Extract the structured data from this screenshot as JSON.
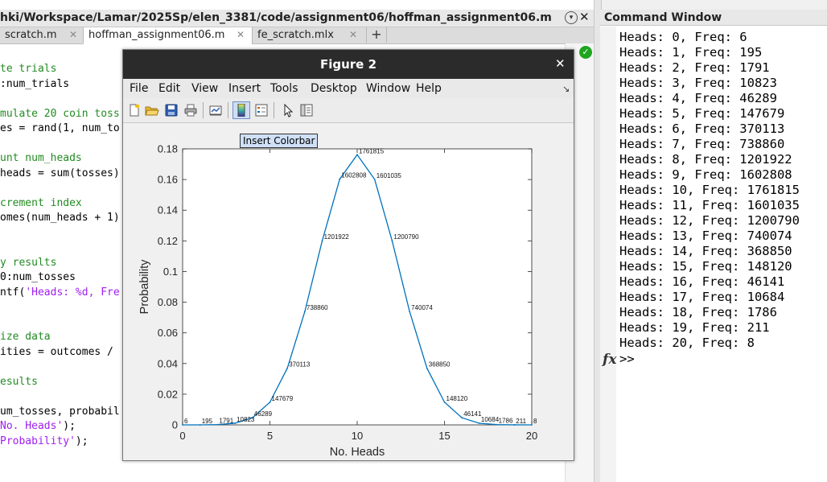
{
  "editor": {
    "path": "hki/Workspace/Lamar/2025Sp/elen_3381/code/assignment06/hoffman_assignment06.m",
    "tabs": [
      {
        "label": "scratch.m",
        "active": false
      },
      {
        "label": "hoffman_assignment06.m",
        "active": true
      },
      {
        "label": "fe_scratch.mlx",
        "active": false
      }
    ],
    "add_tab": "+",
    "code_lines": [
      {
        "parts": [
          {
            "t": "te trials",
            "c": "cm"
          }
        ]
      },
      {
        "parts": [
          {
            "t": ":num_trials",
            "c": ""
          }
        ]
      },
      {
        "parts": [
          {
            "t": "",
            "c": ""
          }
        ]
      },
      {
        "parts": [
          {
            "t": "mulate 20 coin toss",
            "c": "cm"
          }
        ]
      },
      {
        "parts": [
          {
            "t": "es = rand(1, num_to",
            "c": ""
          }
        ]
      },
      {
        "parts": [
          {
            "t": "",
            "c": ""
          }
        ]
      },
      {
        "parts": [
          {
            "t": "unt num_heads",
            "c": "cm"
          }
        ]
      },
      {
        "parts": [
          {
            "t": "heads = sum(tosses)",
            "c": ""
          }
        ]
      },
      {
        "parts": [
          {
            "t": "",
            "c": ""
          }
        ]
      },
      {
        "parts": [
          {
            "t": "crement index",
            "c": "cm"
          }
        ]
      },
      {
        "parts": [
          {
            "t": "omes(num_heads + 1)",
            "c": ""
          }
        ]
      },
      {
        "parts": [
          {
            "t": "",
            "c": ""
          }
        ]
      },
      {
        "parts": [
          {
            "t": "",
            "c": ""
          }
        ]
      },
      {
        "parts": [
          {
            "t": "y results",
            "c": "cm"
          }
        ]
      },
      {
        "parts": [
          {
            "t": "0:num_tosses",
            "c": ""
          }
        ]
      },
      {
        "parts": [
          {
            "t": "ntf(",
            "c": ""
          },
          {
            "t": "'Heads: %d, Fre",
            "c": "str"
          }
        ]
      },
      {
        "parts": [
          {
            "t": "",
            "c": ""
          }
        ]
      },
      {
        "parts": [
          {
            "t": "",
            "c": ""
          }
        ]
      },
      {
        "parts": [
          {
            "t": "ize data",
            "c": "cm"
          }
        ]
      },
      {
        "parts": [
          {
            "t": "ities = outcomes /",
            "c": ""
          }
        ]
      },
      {
        "parts": [
          {
            "t": "",
            "c": ""
          }
        ]
      },
      {
        "parts": [
          {
            "t": "esults",
            "c": "cm"
          }
        ]
      },
      {
        "parts": [
          {
            "t": "",
            "c": ""
          }
        ]
      },
      {
        "parts": [
          {
            "t": "um_tosses, probabil",
            "c": ""
          }
        ]
      },
      {
        "parts": [
          {
            "t": "No. Heads'",
            "c": "str"
          },
          {
            "t": ");",
            "c": ""
          }
        ]
      },
      {
        "parts": [
          {
            "t": "Probability'",
            "c": "str"
          },
          {
            "t": ");",
            "c": ""
          }
        ]
      }
    ]
  },
  "command_window": {
    "title": "Command Window",
    "lines": [
      "Heads: 0, Freq: 6",
      "Heads: 1, Freq: 195",
      "Heads: 2, Freq: 1791",
      "Heads: 3, Freq: 10823",
      "Heads: 4, Freq: 46289",
      "Heads: 5, Freq: 147679",
      "Heads: 6, Freq: 370113",
      "Heads: 7, Freq: 738860",
      "Heads: 8, Freq: 1201922",
      "Heads: 9, Freq: 1602808",
      "Heads: 10, Freq: 1761815",
      "Heads: 11, Freq: 1601035",
      "Heads: 12, Freq: 1200790",
      "Heads: 13, Freq: 740074",
      "Heads: 14, Freq: 368850",
      "Heads: 15, Freq: 148120",
      "Heads: 16, Freq: 46141",
      "Heads: 17, Freq: 10684",
      "Heads: 18, Freq: 1786",
      "Heads: 19, Freq: 211",
      "Heads: 20, Freq: 8"
    ],
    "fx": "fx",
    "prompt": ">>"
  },
  "figure": {
    "title": "Figure 2",
    "close": "✕",
    "menus": [
      "File",
      "Edit",
      "View",
      "Insert",
      "Tools",
      "Desktop",
      "Window",
      "Help"
    ],
    "tooltip": "Insert Colorbar",
    "toolbar_icons": [
      "new-figure-icon",
      "open-file-icon",
      "save-icon",
      "print-icon",
      "link-plot-icon",
      "insert-colorbar-icon",
      "insert-legend-icon",
      "pointer-icon",
      "property-editor-icon"
    ]
  },
  "colors": {
    "line": "#0072bd",
    "comment": "#228b22",
    "string": "#a020f0",
    "figure_titlebar": "#2b2b2b"
  },
  "chart_data": {
    "type": "line",
    "xlabel": "No. Heads",
    "ylabel": "Probability",
    "title": "",
    "xlim": [
      0,
      20
    ],
    "ylim": [
      0,
      0.18
    ],
    "xticks": [
      0,
      5,
      10,
      15,
      20
    ],
    "yticks": [
      0,
      0.02,
      0.04,
      0.06,
      0.08,
      0.1,
      0.12,
      0.14,
      0.16,
      0.18
    ],
    "ytick_labels": [
      "0",
      "0.02",
      "0.04",
      "0.06",
      "0.08",
      "0.1",
      "0.12",
      "0.14",
      "0.16",
      "0.18"
    ],
    "x": [
      0,
      1,
      2,
      3,
      4,
      5,
      6,
      7,
      8,
      9,
      10,
      11,
      12,
      13,
      14,
      15,
      16,
      17,
      18,
      19,
      20
    ],
    "y": [
      6e-07,
      1.95e-05,
      0.0001791,
      0.0010823,
      0.0046289,
      0.0147679,
      0.0370113,
      0.073886,
      0.1201922,
      0.1602808,
      0.1761815,
      0.1601035,
      0.120079,
      0.0740074,
      0.036885,
      0.014812,
      0.0046141,
      0.0010684,
      0.0001786,
      2.11e-05,
      8e-07
    ],
    "point_labels": [
      "6",
      "195",
      "1791",
      "10823",
      "46289",
      "147679",
      "370113",
      "738860",
      "1201922",
      "1602808",
      "1761815",
      "1601035",
      "1200790",
      "740074",
      "368850",
      "148120",
      "46141",
      "10684",
      "1786",
      "211",
      "8"
    ],
    "grid": false
  }
}
